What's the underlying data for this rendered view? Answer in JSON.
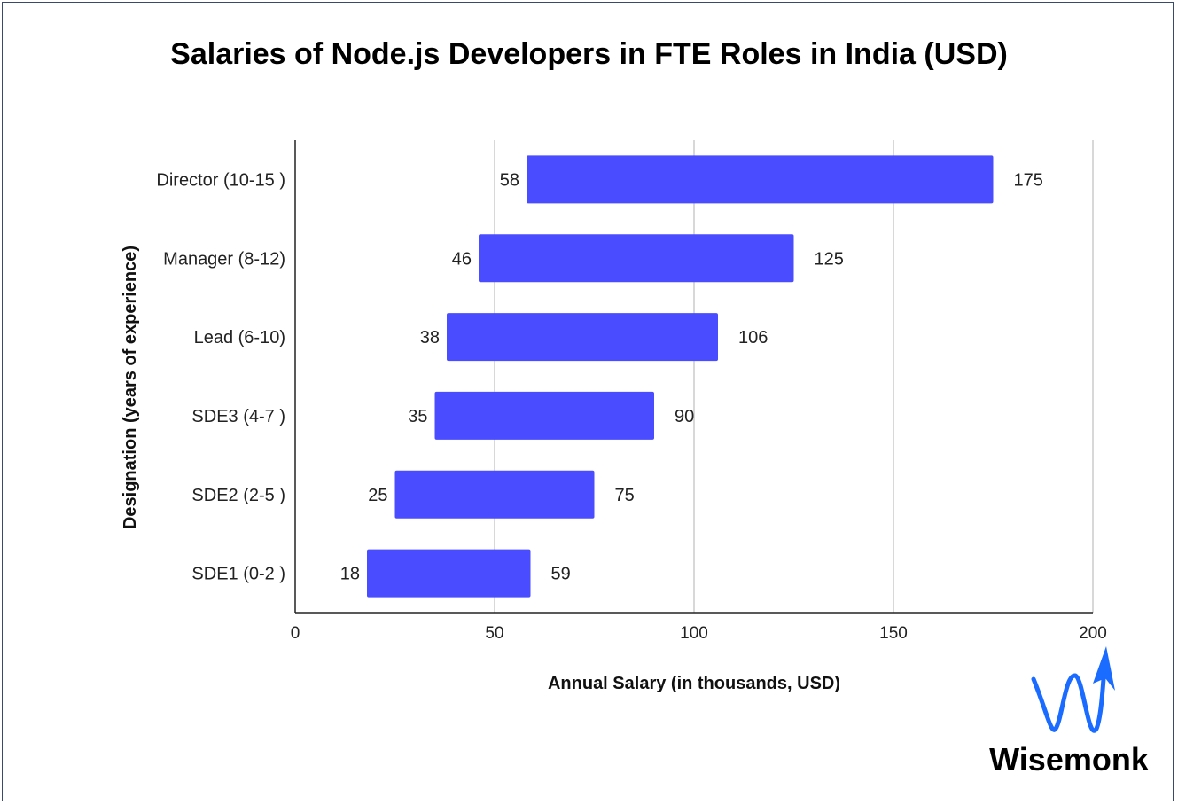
{
  "chart_data": {
    "type": "bar",
    "orientation": "horizontal",
    "subtype": "floating-range",
    "title": "Salaries of Node.js Developers in FTE Roles in India (USD)",
    "xlabel": "Annual Salary (in thousands, USD)",
    "ylabel": "Designation (years of experience)",
    "xlim": [
      0,
      200
    ],
    "xticks": [
      "0",
      "50",
      "100",
      "150",
      "200"
    ],
    "grid": true,
    "categories": [
      "Director (10-15 )",
      "Manager (8-12)",
      "Lead (6-10)",
      "SDE3 (4-7 )",
      "SDE2 (2-5 )",
      "SDE1 (0-2 )"
    ],
    "series": [
      {
        "low": [
          58,
          46,
          38,
          35,
          25,
          18
        ],
        "high": [
          175,
          125,
          106,
          90,
          75,
          59
        ]
      }
    ],
    "low_labels": [
      "58",
      "46",
      "38",
      "35",
      "25",
      "18"
    ],
    "high_labels": [
      "175",
      "125",
      "106",
      "90",
      "75",
      "59"
    ],
    "bar_color": "#4a4dff",
    "legend": "none"
  },
  "logo": {
    "text": "Wisemonk",
    "color": "#1a6bff"
  }
}
